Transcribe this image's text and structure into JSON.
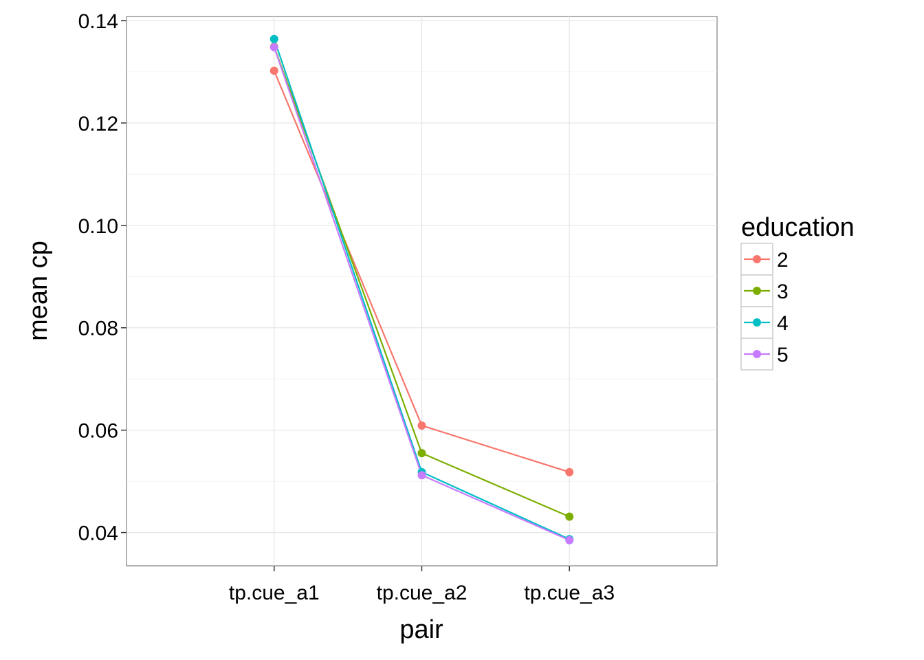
{
  "chart_data": {
    "type": "line",
    "title": "",
    "xlabel": "pair",
    "ylabel": "mean cp",
    "categories": [
      "tp.cue_a1",
      "tp.cue_a2",
      "tp.cue_a3"
    ],
    "ylim": [
      0.0335,
      0.1408
    ],
    "yticks": [
      0.04,
      0.06,
      0.08,
      0.1,
      0.12,
      0.14
    ],
    "ytick_labels": [
      "0.04",
      "0.06",
      "0.08",
      "0.10",
      "0.12",
      "0.14"
    ],
    "grid": true,
    "legend": {
      "title": "education",
      "placement": "right"
    },
    "series": [
      {
        "name": "2",
        "color": "#F8766D",
        "values": [
          0.1302,
          0.0609,
          0.0518
        ]
      },
      {
        "name": "3",
        "color": "#7CAE00",
        "values": [
          0.1349,
          0.0555,
          0.0431
        ]
      },
      {
        "name": "4",
        "color": "#00BFC4",
        "values": [
          0.1364,
          0.0518,
          0.0387
        ]
      },
      {
        "name": "5",
        "color": "#C77CFF",
        "values": [
          0.1348,
          0.0512,
          0.0385
        ]
      }
    ]
  }
}
